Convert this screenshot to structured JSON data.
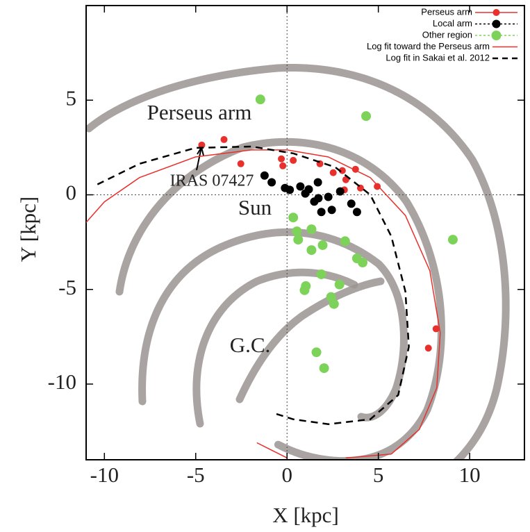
{
  "chart_data": {
    "type": "scatter",
    "xlabel": "X [kpc]",
    "ylabel": "Y [kpc]",
    "xlim": [
      -11,
      13
    ],
    "ylim": [
      -14,
      10
    ],
    "xticks": [
      -10,
      -5,
      0,
      5,
      10
    ],
    "yticks": [
      -10,
      -5,
      0,
      5
    ],
    "annotations": [
      "Perseus arm",
      "IRAS 07427",
      "Sun",
      "G.C."
    ],
    "series": [
      {
        "name": "Perseus arm",
        "color": "#e8302c",
        "style": "points",
        "x": [
          -4.67,
          -3.45,
          -2.53,
          -0.31,
          -0.23,
          0.34,
          1.8,
          2.53,
          3.03,
          3.22,
          3.75,
          4.02,
          4.94,
          3.14,
          8.16,
          7.74
        ],
        "y": [
          2.63,
          2.92,
          1.64,
          1.9,
          1.53,
          1.82,
          1.64,
          1.17,
          1.28,
          0.8,
          1.35,
          0.36,
          0.44,
          0.26,
          -7.08,
          -8.1
        ]
      },
      {
        "name": "Local arm",
        "color": "#000000",
        "style": "points",
        "x": [
          -1.23,
          -0.84,
          -0.11,
          0.15,
          0.73,
          1.0,
          1.49,
          1.72,
          1.69,
          2.26,
          2.91,
          2.45,
          3.52,
          3.83,
          1.88,
          1.19
        ],
        "y": [
          1.02,
          0.66,
          0.36,
          0.26,
          0.44,
          0.07,
          -0.36,
          -0.18,
          0.66,
          -0.11,
          0.18,
          -0.8,
          -0.47,
          -0.91,
          -0.91,
          0.29
        ]
      },
      {
        "name": "Other region",
        "color": "#7dd35a",
        "style": "points",
        "x": [
          -1.46,
          4.33,
          9.08,
          0.34,
          0.54,
          0.61,
          1.34,
          1.95,
          1.34,
          3.18,
          3.83,
          4.14,
          1.88,
          2.87,
          0.96,
          1.03,
          2.41,
          2.57,
          1.61,
          2.03
        ],
        "y": [
          5.04,
          4.16,
          -2.37,
          -1.2,
          -1.93,
          -2.37,
          -1.82,
          -2.66,
          -2.92,
          -2.45,
          -3.36,
          -3.58,
          -4.2,
          -4.74,
          -5.04,
          -4.82,
          -5.4,
          -5.77,
          -8.32,
          -9.16
        ]
      },
      {
        "name": "Log fit toward the Perseus arm",
        "color": "#e8302c",
        "style": "solid",
        "x": [
          -11,
          -10,
          -8.08,
          -5.02,
          -1.95,
          0,
          2.26,
          4.56,
          6.48,
          7.82,
          8.39,
          8.2,
          7.24,
          5.71,
          3.22,
          null,
          0,
          -1.65
        ],
        "y": [
          -1.46,
          -0.37,
          0.91,
          2.0,
          2.37,
          2.37,
          2.0,
          0.91,
          -1.09,
          -4.01,
          -7.3,
          -10.2,
          -12.4,
          -13.7,
          -13.9,
          null,
          -13.9,
          -13.1
        ]
      },
      {
        "name": "Log fit in Sakai et al. 2012",
        "color": "#000000",
        "style": "dashed",
        "x": [
          -10.38,
          -8.08,
          -5.02,
          -1.95,
          0.34,
          2.64,
          4.56,
          5.71,
          6.48,
          6.67,
          6.09,
          4.56,
          2.26,
          0.34,
          -0.61
        ],
        "y": [
          0.55,
          1.64,
          2.48,
          2.55,
          2.19,
          1.46,
          0,
          -2.19,
          -5.11,
          -8.03,
          -10.58,
          -11.86,
          -12.12,
          -11.86,
          -11.57
        ]
      }
    ]
  }
}
